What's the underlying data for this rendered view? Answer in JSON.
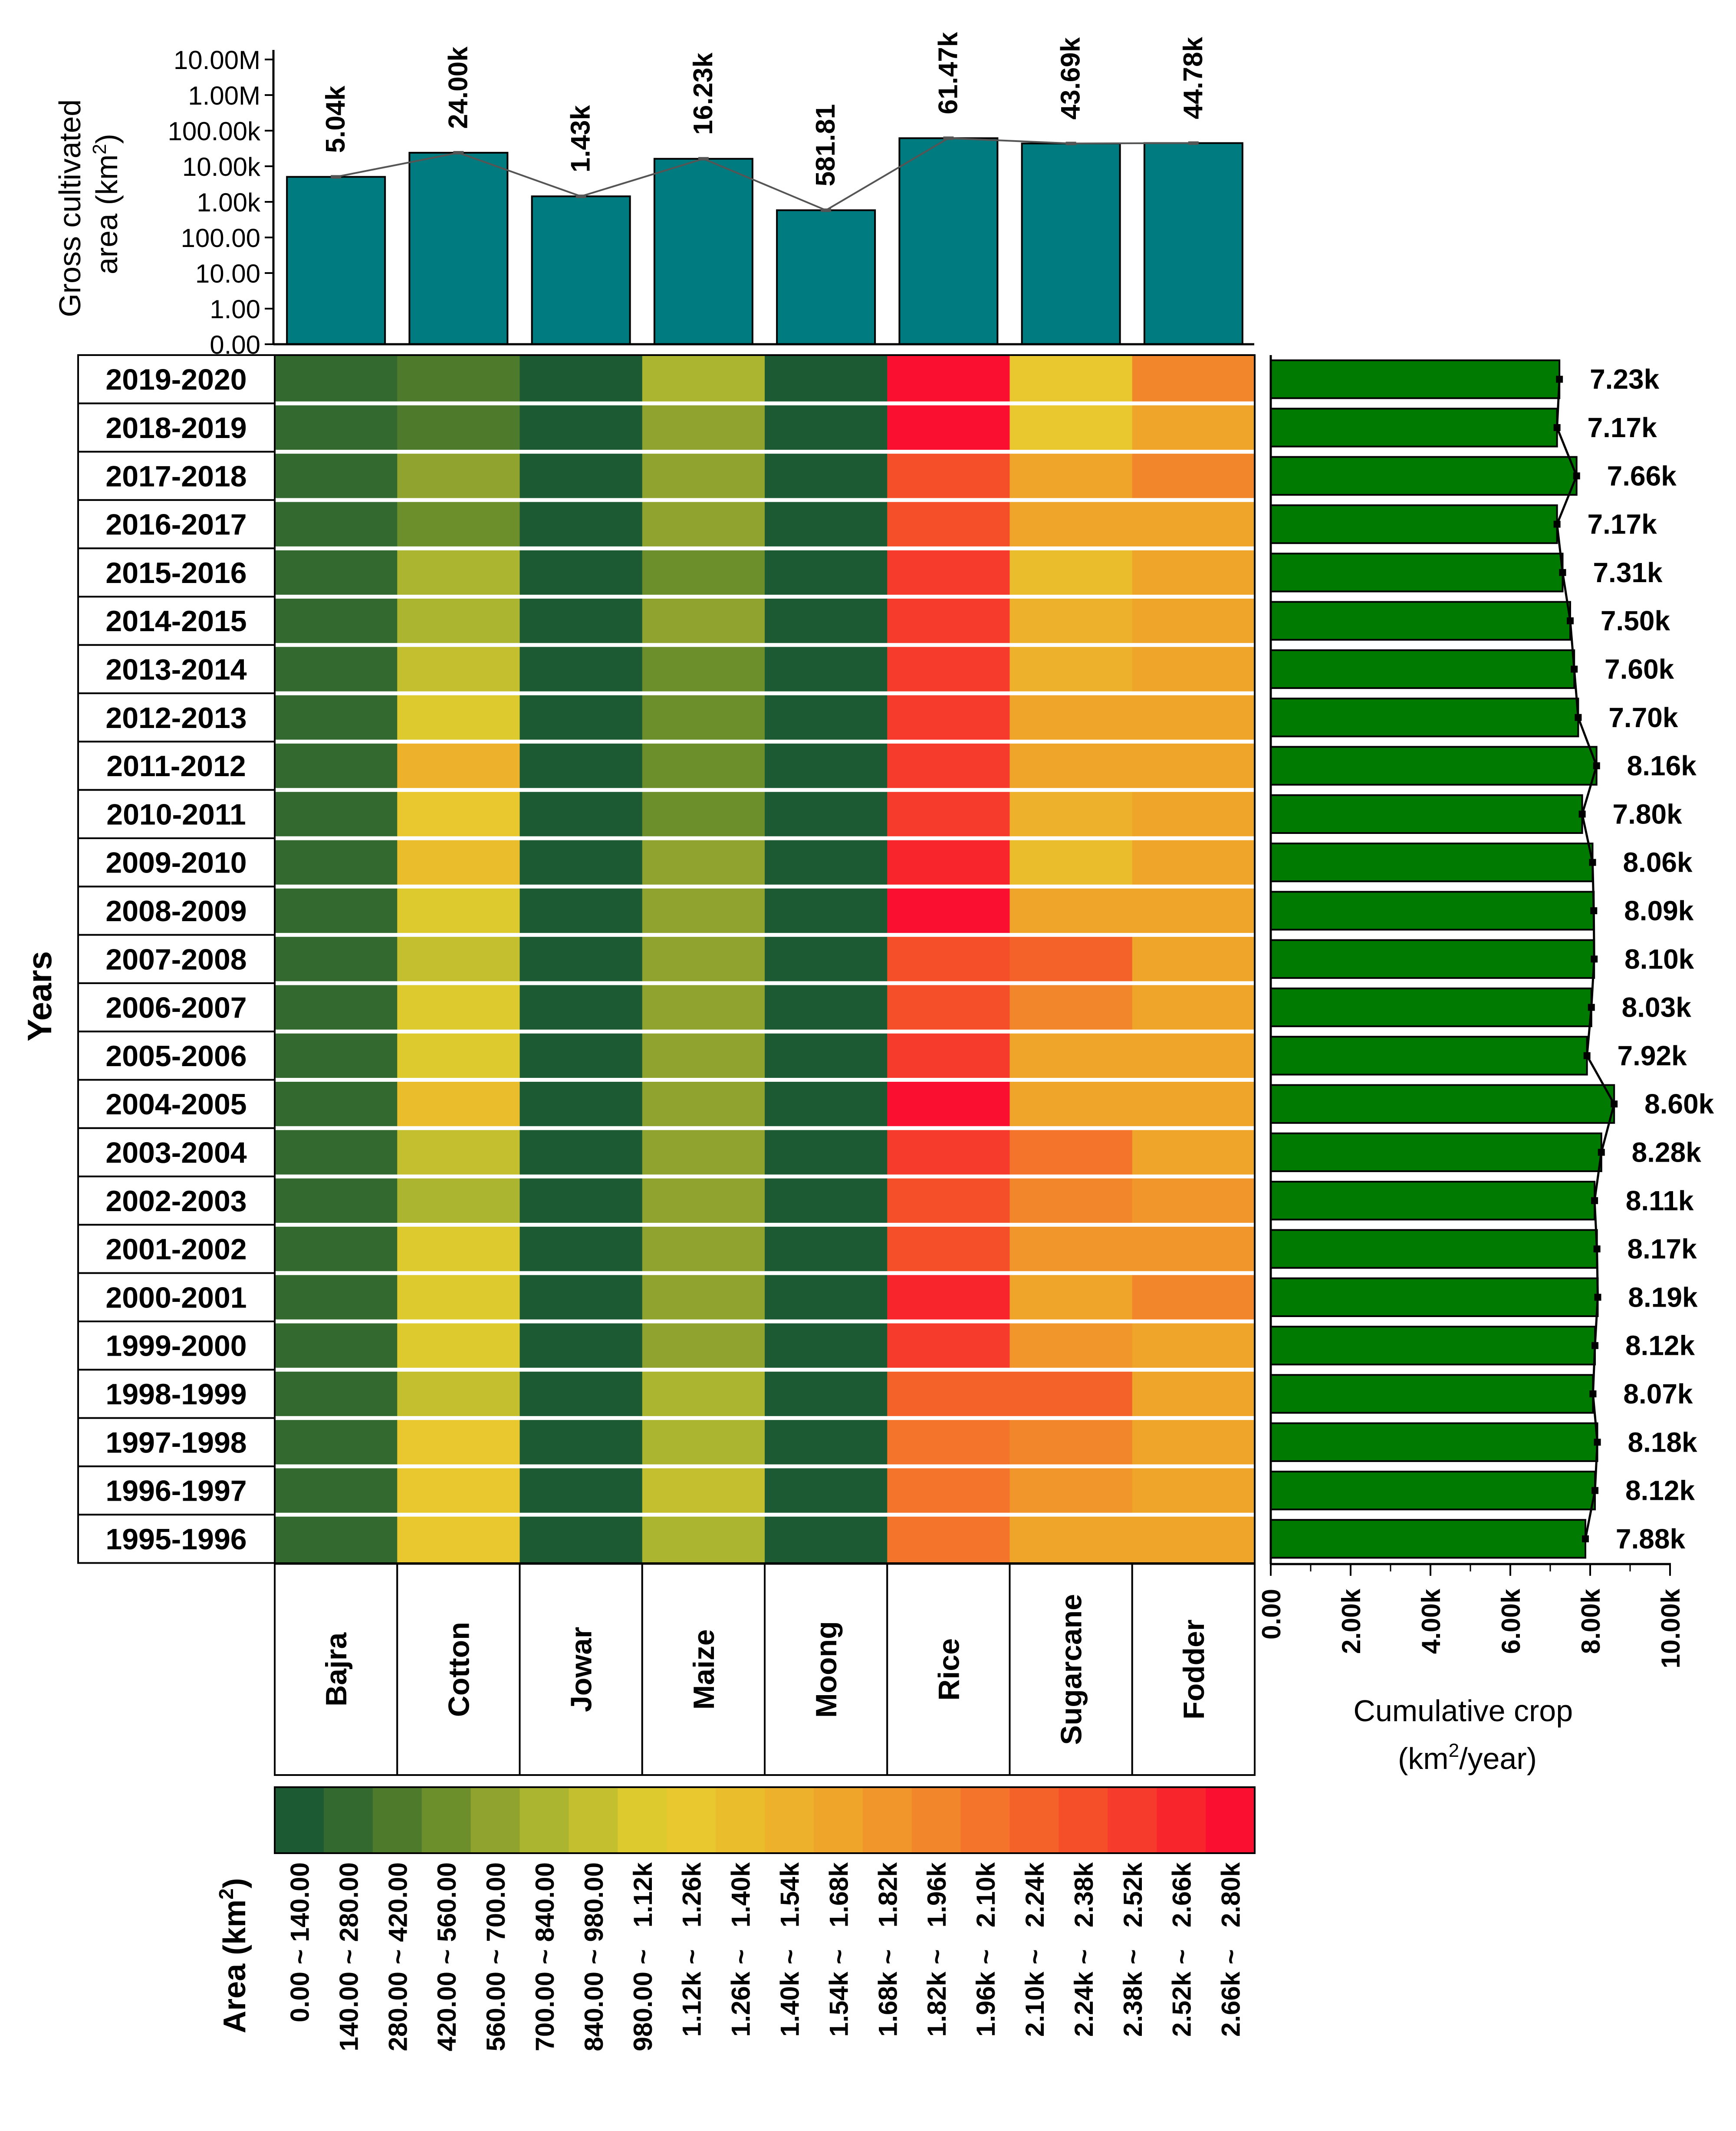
{
  "chart_data": [
    {
      "type": "bar",
      "title": "",
      "ylabel_line1": "Gross cultivated",
      "ylabel_line2": "area (km",
      "ylabel_sup": "2",
      "ylabel_tail": ")",
      "yscale": "log",
      "ytick_labels": [
        "0.00",
        "1.00",
        "10.00",
        "100.00",
        "1.00k",
        "10.00k",
        "100.00k",
        "1.00M",
        "10.00M"
      ],
      "categories": [
        "Bajra",
        "Cotton",
        "Jowar",
        "Maize",
        "Moong",
        "Rice",
        "Sugarcane",
        "Fodder"
      ],
      "values": [
        5040,
        24000,
        1430,
        16230,
        581.81,
        61470,
        43690,
        44780
      ],
      "data_labels": [
        "5.04k",
        "24.00k",
        "1.43k",
        "16.23k",
        "581.81",
        "61.47k",
        "43.69k",
        "44.78k"
      ],
      "bar_color": "#007B7F"
    },
    {
      "type": "heatmap",
      "ylabel": "Years",
      "years": [
        "2019-2020",
        "2018-2019",
        "2017-2018",
        "2016-2017",
        "2015-2016",
        "2014-2015",
        "2013-2014",
        "2012-2013",
        "2011-2012",
        "2010-2011",
        "2009-2010",
        "2008-2009",
        "2007-2008",
        "2006-2007",
        "2005-2006",
        "2004-2005",
        "2003-2004",
        "2002-2003",
        "2001-2002",
        "2000-2001",
        "1999-2000",
        "1998-1999",
        "1997-1998",
        "1996-1997",
        "1995-1996"
      ],
      "crops": [
        "Bajra",
        "Cotton",
        "Jowar",
        "Maize",
        "Moong",
        "Rice",
        "Sugarcane",
        "Fodder"
      ],
      "bin_index_matrix": [
        [
          1,
          2,
          0,
          5,
          0,
          19,
          8,
          13
        ],
        [
          1,
          2,
          0,
          4,
          0,
          19,
          8,
          11
        ],
        [
          1,
          4,
          0,
          4,
          0,
          16,
          11,
          13
        ],
        [
          1,
          3,
          0,
          4,
          0,
          16,
          11,
          11
        ],
        [
          1,
          5,
          0,
          3,
          0,
          17,
          9,
          11
        ],
        [
          1,
          5,
          0,
          4,
          0,
          17,
          10,
          11
        ],
        [
          1,
          6,
          0,
          3,
          0,
          17,
          10,
          11
        ],
        [
          1,
          7,
          0,
          3,
          0,
          17,
          11,
          11
        ],
        [
          1,
          10,
          0,
          3,
          0,
          17,
          11,
          11
        ],
        [
          1,
          8,
          0,
          3,
          0,
          17,
          10,
          11
        ],
        [
          1,
          9,
          0,
          4,
          0,
          18,
          9,
          11
        ],
        [
          1,
          7,
          0,
          4,
          0,
          19,
          11,
          11
        ],
        [
          1,
          6,
          0,
          4,
          0,
          16,
          15,
          11
        ],
        [
          1,
          7,
          0,
          4,
          0,
          16,
          13,
          11
        ],
        [
          1,
          7,
          0,
          4,
          0,
          17,
          11,
          11
        ],
        [
          1,
          9,
          0,
          4,
          0,
          19,
          11,
          11
        ],
        [
          1,
          6,
          0,
          4,
          0,
          17,
          14,
          11
        ],
        [
          1,
          5,
          0,
          4,
          0,
          16,
          13,
          12
        ],
        [
          1,
          7,
          0,
          4,
          0,
          16,
          12,
          12
        ],
        [
          1,
          7,
          0,
          4,
          0,
          18,
          11,
          13
        ],
        [
          1,
          7,
          0,
          4,
          0,
          17,
          12,
          11
        ],
        [
          1,
          6,
          0,
          5,
          0,
          15,
          15,
          11
        ],
        [
          1,
          8,
          0,
          5,
          0,
          14,
          13,
          11
        ],
        [
          1,
          8,
          0,
          6,
          0,
          14,
          12,
          11
        ],
        [
          1,
          8,
          0,
          5,
          0,
          14,
          11,
          11
        ]
      ],
      "legend_title": "Area (km",
      "legend_title_sup": "2",
      "legend_title_tail": ")",
      "legend_bins": [
        "0.00 ~ 140.00",
        "140.00 ~ 280.00",
        "280.00 ~ 420.00",
        "420.00 ~ 560.00",
        "560.00 ~ 700.00",
        "700.00 ~ 840.00",
        "840.00 ~ 980.00",
        "980.00 ~   1.12k",
        "1.12k ~   1.26k",
        "1.26k ~   1.40k",
        "1.40k ~   1.54k",
        "1.54k ~   1.68k",
        "1.68k ~   1.82k",
        "1.82k ~   1.96k",
        "1.96k ~   2.10k",
        "2.10k ~   2.24k",
        "2.24k ~   2.38k",
        "2.38k ~   2.52k",
        "2.52k ~   2.66k",
        "2.66k ~   2.80k"
      ],
      "legend_colors": [
        "#1B5A33",
        "#33682F",
        "#4E7A2C",
        "#6C8F2C",
        "#8FA32E",
        "#ABB52F",
        "#C4BF2F",
        "#DCCA2E",
        "#E8C82E",
        "#EABD2C",
        "#EDB12B",
        "#EFA42A",
        "#F1962A",
        "#F2862A",
        "#F3742A",
        "#F4622A",
        "#F54F2A",
        "#F63A2B",
        "#F8262C",
        "#FA0F30"
      ]
    },
    {
      "type": "bar",
      "orientation": "horizontal",
      "xlabel_line1": "Cumulative crop",
      "xlabel_line2_pre": "(km",
      "xlabel_sup": "2",
      "xlabel_line2_post": "/year)",
      "xlim": [
        0,
        10000
      ],
      "xtick_labels": [
        "0.00",
        "2.00k",
        "4.00k",
        "6.00k",
        "8.00k",
        "10.00k"
      ],
      "years": [
        "2019-2020",
        "2018-2019",
        "2017-2018",
        "2016-2017",
        "2015-2016",
        "2014-2015",
        "2013-2014",
        "2012-2013",
        "2011-2012",
        "2010-2011",
        "2009-2010",
        "2008-2009",
        "2007-2008",
        "2006-2007",
        "2005-2006",
        "2004-2005",
        "2003-2004",
        "2002-2003",
        "2001-2002",
        "2000-2001",
        "1999-2000",
        "1998-1999",
        "1997-1998",
        "1996-1997",
        "1995-1996"
      ],
      "values": [
        7230,
        7170,
        7660,
        7170,
        7310,
        7500,
        7600,
        7700,
        8160,
        7800,
        8060,
        8090,
        8100,
        8030,
        7920,
        8600,
        8280,
        8110,
        8170,
        8190,
        8120,
        8070,
        8180,
        8120,
        7880
      ],
      "data_labels": [
        "7.23k",
        "7.17k",
        "7.66k",
        "7.17k",
        "7.31k",
        "7.50k",
        "7.60k",
        "7.70k",
        "8.16k",
        "7.80k",
        "8.06k",
        "8.09k",
        "8.10k",
        "8.03k",
        "7.92k",
        "8.60k",
        "8.28k",
        "8.11k",
        "8.17k",
        "8.19k",
        "8.12k",
        "8.07k",
        "8.18k",
        "8.12k",
        "7.88k"
      ],
      "bar_color": "#007A00"
    }
  ]
}
